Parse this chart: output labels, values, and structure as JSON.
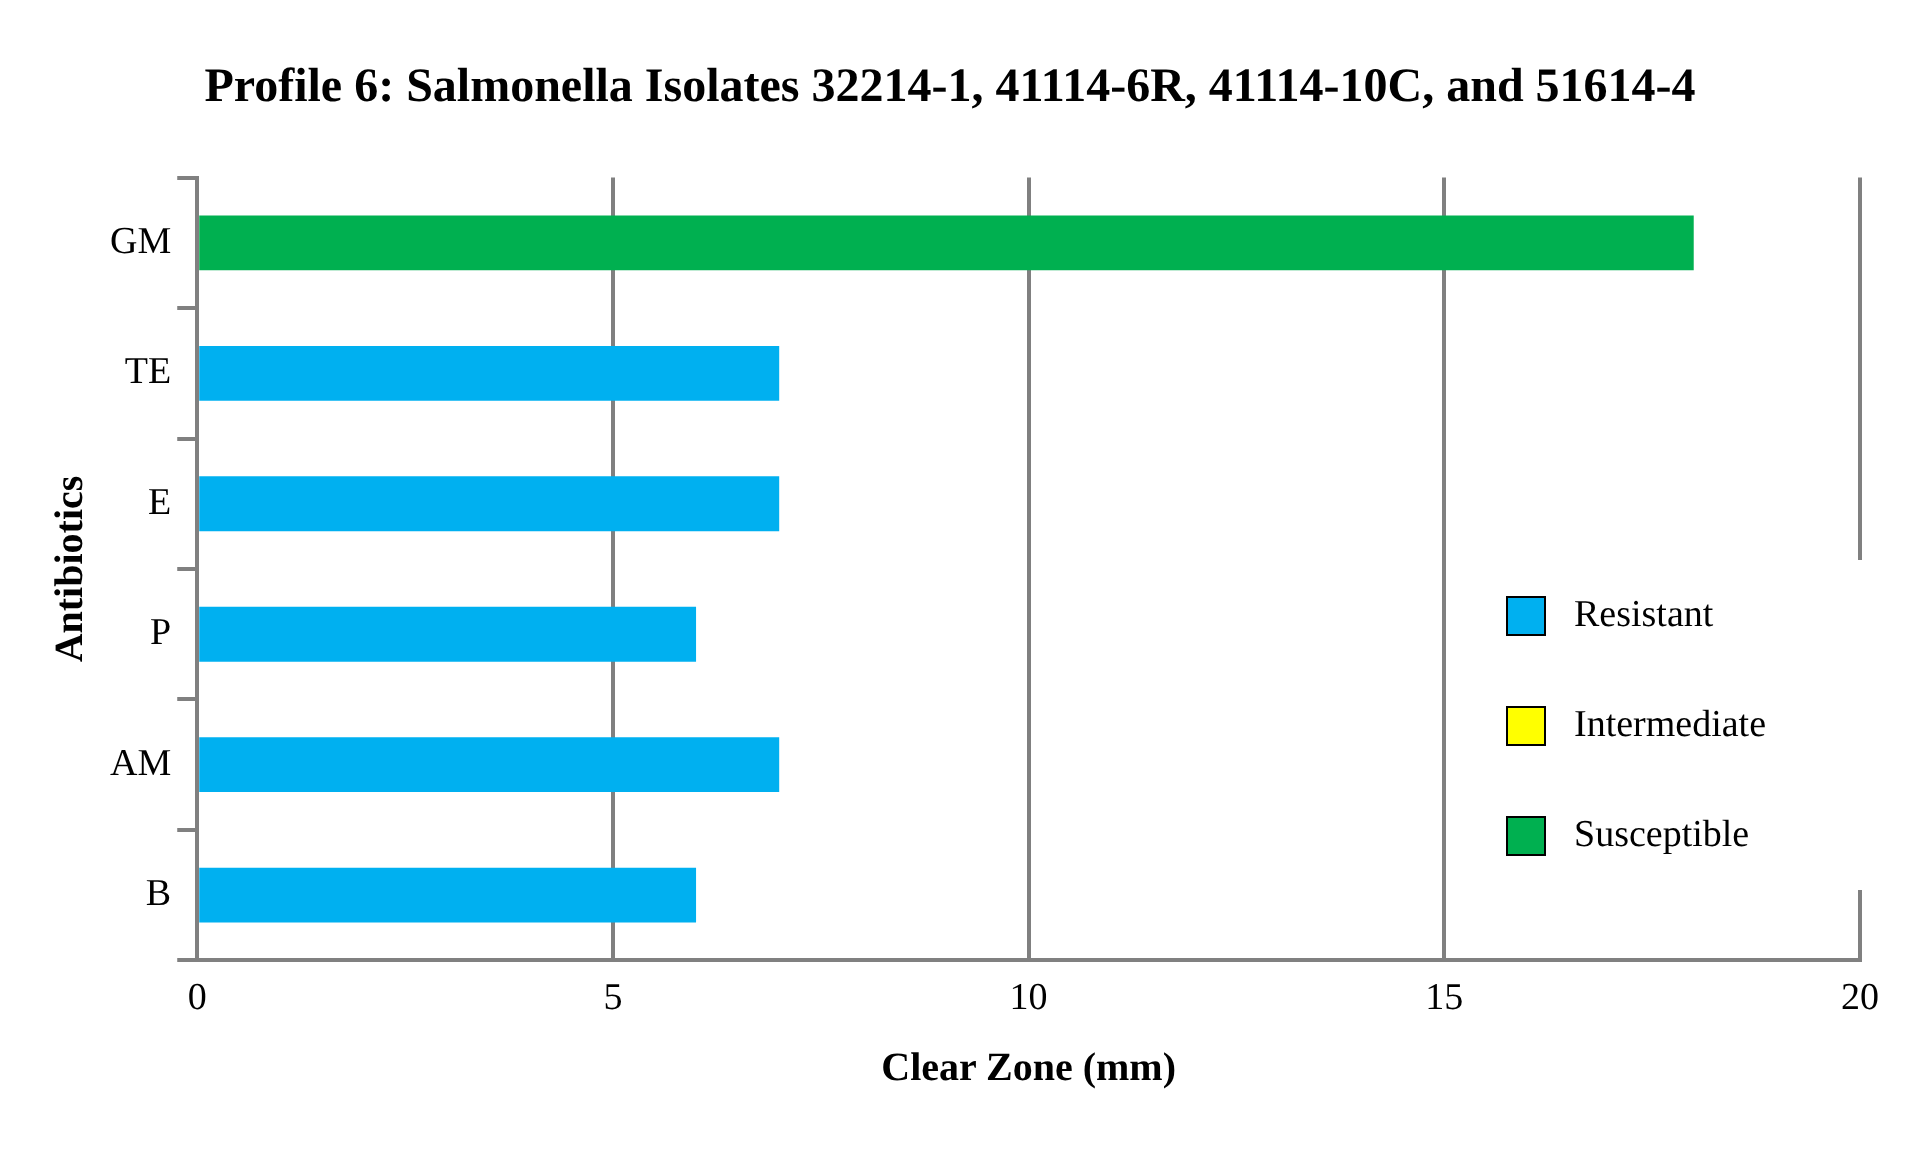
{
  "chart_data": {
    "type": "bar",
    "orientation": "horizontal",
    "title": "Profile 6: Salmonella Isolates 32214-1, 41114-6R, 41114-10C, and 51614-4",
    "xlabel": "Clear Zone (mm)",
    "ylabel": "Antibiotics",
    "categories": [
      "GM",
      "TE",
      "E",
      "P",
      "AM",
      "B"
    ],
    "series": [
      {
        "name": "Resistant",
        "color": "#00b0f0",
        "values": [
          null,
          7,
          7,
          6,
          7,
          6
        ]
      },
      {
        "name": "Intermediate",
        "color": "#ffff00",
        "values": [
          null,
          null,
          null,
          null,
          null,
          null
        ]
      },
      {
        "name": "Susceptible",
        "color": "#00b050",
        "values": [
          18,
          null,
          null,
          null,
          null,
          null
        ]
      }
    ],
    "xlim": [
      0,
      20
    ],
    "xticks": [
      0,
      5,
      10,
      15,
      20
    ],
    "grid": "x",
    "legend": "right"
  }
}
